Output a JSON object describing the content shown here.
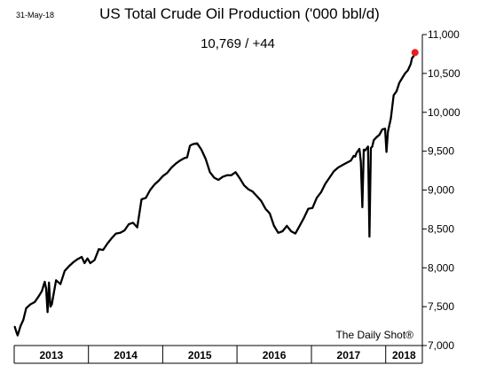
{
  "date_label": "31-May-18",
  "readout": "10,769  /  +44",
  "source": "The Daily Shot®",
  "colors": {
    "line": "#000000",
    "marker": "#e81e1e",
    "axis": "#000000"
  },
  "chart_data": {
    "type": "line",
    "title": "US Total Crude Oil Production ('000 bbl/d)",
    "xlabel": "",
    "ylabel": "",
    "ylim": [
      7000,
      11000
    ],
    "xlim": [
      "2013-01-01",
      "2018-06-30"
    ],
    "y_ticks": [
      "7,000",
      "7,500",
      "8,000",
      "8,500",
      "9,000",
      "9,500",
      "10,000",
      "10,500",
      "11,000"
    ],
    "y_tick_values": [
      7000,
      7500,
      8000,
      8500,
      9000,
      9500,
      10000,
      10500,
      11000
    ],
    "x_categories": [
      "2013",
      "2014",
      "2015",
      "2016",
      "2017",
      "2018"
    ],
    "y_axis_position": "right",
    "grid": false,
    "legend": "none",
    "last_point": {
      "x": "2018-05-25",
      "y": 10769,
      "change": 44
    },
    "series": [
      {
        "x": [
          "2013-01-04",
          "2013-01-11",
          "2013-01-18",
          "2013-02-01",
          "2013-02-15",
          "2013-03-01",
          "2013-03-22",
          "2013-04-12",
          "2013-05-03",
          "2013-05-17",
          "2013-05-31",
          "2013-06-07",
          "2013-06-14",
          "2013-06-21",
          "2013-06-28",
          "2013-07-05",
          "2013-07-26",
          "2013-08-16",
          "2013-09-06",
          "2013-09-27",
          "2013-10-18",
          "2013-11-08",
          "2013-11-29",
          "2013-12-13",
          "2013-12-27",
          "2014-01-10",
          "2014-01-31",
          "2014-02-21",
          "2014-03-14",
          "2014-04-04",
          "2014-04-25",
          "2014-05-16",
          "2014-06-06",
          "2014-06-27",
          "2014-07-18",
          "2014-08-08",
          "2014-08-29",
          "2014-09-19",
          "2014-10-10",
          "2014-10-31",
          "2014-11-21",
          "2014-12-12",
          "2015-01-02",
          "2015-01-23",
          "2015-02-13",
          "2015-03-06",
          "2015-03-27",
          "2015-04-17",
          "2015-05-01",
          "2015-05-15",
          "2015-05-29",
          "2015-06-19",
          "2015-07-10",
          "2015-07-31",
          "2015-08-21",
          "2015-09-11",
          "2015-10-02",
          "2015-10-23",
          "2015-11-13",
          "2015-12-04",
          "2015-12-25",
          "2016-01-15",
          "2016-02-05",
          "2016-02-26",
          "2016-03-18",
          "2016-04-08",
          "2016-04-29",
          "2016-05-20",
          "2016-06-10",
          "2016-07-01",
          "2016-07-22",
          "2016-08-12",
          "2016-09-02",
          "2016-09-23",
          "2016-10-14",
          "2016-11-04",
          "2016-11-25",
          "2016-12-16",
          "2017-01-06",
          "2017-01-27",
          "2017-02-17",
          "2017-03-10",
          "2017-03-31",
          "2017-04-21",
          "2017-05-12",
          "2017-06-02",
          "2017-06-23",
          "2017-07-14",
          "2017-07-28",
          "2017-08-04",
          "2017-08-11",
          "2017-08-25",
          "2017-09-01",
          "2017-09-08",
          "2017-09-15",
          "2017-09-22",
          "2017-10-06",
          "2017-10-13",
          "2017-10-20",
          "2017-10-27",
          "2017-11-03",
          "2017-11-17",
          "2017-12-01",
          "2017-12-15",
          "2017-12-29",
          "2018-01-05",
          "2018-01-12",
          "2018-01-26",
          "2018-02-09",
          "2018-02-23",
          "2018-03-09",
          "2018-03-23",
          "2018-04-06",
          "2018-04-20",
          "2018-05-04",
          "2018-05-11",
          "2018-05-18",
          "2018-05-25"
        ],
        "values": [
          7240,
          7180,
          7130,
          7250,
          7330,
          7480,
          7530,
          7560,
          7640,
          7700,
          7820,
          7730,
          7430,
          7810,
          7500,
          7530,
          7840,
          7790,
          7960,
          8020,
          8070,
          8110,
          8140,
          8060,
          8120,
          8060,
          8100,
          8240,
          8230,
          8310,
          8380,
          8440,
          8450,
          8480,
          8560,
          8580,
          8520,
          8880,
          8900,
          9000,
          9070,
          9120,
          9180,
          9220,
          9290,
          9340,
          9380,
          9410,
          9420,
          9570,
          9590,
          9600,
          9520,
          9400,
          9230,
          9160,
          9130,
          9170,
          9190,
          9190,
          9230,
          9150,
          9060,
          9010,
          8980,
          8920,
          8860,
          8760,
          8700,
          8540,
          8450,
          8470,
          8540,
          8470,
          8440,
          8540,
          8640,
          8760,
          8770,
          8900,
          8970,
          9080,
          9160,
          9240,
          9290,
          9320,
          9350,
          9380,
          9440,
          9430,
          9480,
          9530,
          9360,
          8780,
          9520,
          9510,
          9560,
          8400,
          9540,
          9560,
          9640,
          9680,
          9710,
          9780,
          9790,
          9490,
          9750,
          9920,
          10220,
          10270,
          10380,
          10440,
          10500,
          10540,
          10620,
          10700,
          10720,
          10769
        ]
      }
    ]
  }
}
